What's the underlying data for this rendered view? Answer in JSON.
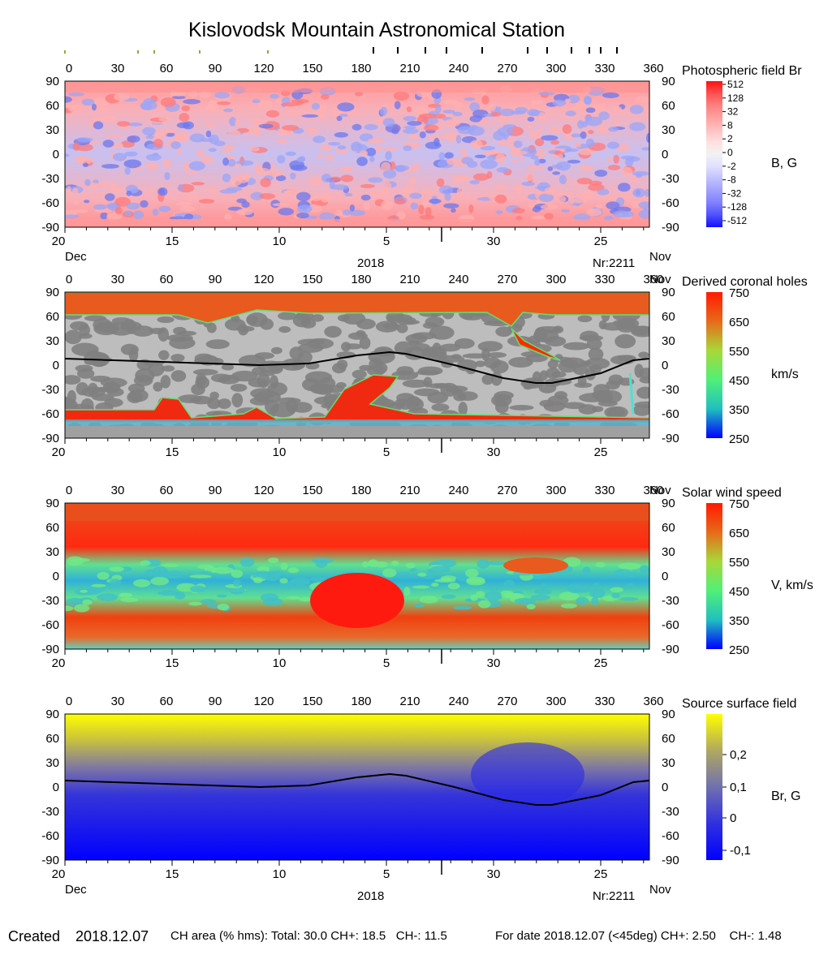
{
  "title": "Kislovodsk Mountain Astronomical Station",
  "top_markers": [
    0,
    45,
    55,
    83,
    125,
    190,
    205,
    222,
    235,
    257,
    285,
    297,
    312,
    323,
    330,
    340
  ],
  "lon_ticks": [
    "0",
    "30",
    "60",
    "90",
    "120",
    "150",
    "180",
    "210",
    "240",
    "270",
    "300",
    "330",
    "360"
  ],
  "lat_ticks": [
    "90",
    "60",
    "30",
    "0",
    "-30",
    "-60",
    "-90"
  ],
  "date_ticks": [
    {
      "label": "20",
      "lon": 0
    },
    {
      "label": "15",
      "lon": 66
    },
    {
      "label": "10",
      "lon": 132
    },
    {
      "label": "5",
      "lon": 198
    },
    {
      "label": "30",
      "lon": 264
    },
    {
      "label": "25",
      "lon": 330
    }
  ],
  "month_left": "Dec",
  "month_right": "Nov",
  "year": "2018",
  "rotation": "Nr:2211",
  "panels": [
    {
      "name": "photospheric",
      "title": "Photospheric field Br",
      "unit": "B, G",
      "colorbar": {
        "colors": [
          "#ff1010",
          "#ff5050",
          "#ff8080",
          "#ffa0a0",
          "#ffc0c0",
          "#ffe0e0",
          "#f2f2f2",
          "#e0e0ff",
          "#c0c0ff",
          "#a0a0ff",
          "#8080ff",
          "#5050ff",
          "#1010ff"
        ],
        "labels": [
          "512",
          "128",
          "32",
          "8",
          "2",
          "0",
          "-2",
          "-8",
          "-32",
          "-128",
          "-512"
        ]
      },
      "show_month_labels": true,
      "show_neutral_line": false
    },
    {
      "name": "coronal-holes",
      "title": "Derived coronal holes",
      "unit": "km/s",
      "colorbar": {
        "colors": [
          "#ff1a00",
          "#e86a1a",
          "#a8d838",
          "#50f078",
          "#20c0c0",
          "#0000ff"
        ],
        "labels": [
          "750",
          "650",
          "550",
          "450",
          "350",
          "250"
        ]
      },
      "show_month_labels": false,
      "show_neutral_line": true
    },
    {
      "name": "solar-wind",
      "title": "Solar wind speed",
      "unit": "V, km/s",
      "colorbar": {
        "colors": [
          "#ff1a00",
          "#e86a1a",
          "#a8d838",
          "#50f078",
          "#20c0c0",
          "#0000ff"
        ],
        "labels": [
          "750",
          "650",
          "550",
          "450",
          "350",
          "250"
        ]
      },
      "show_month_labels": false,
      "show_neutral_line": false
    },
    {
      "name": "source-surface",
      "title": "Source surface field",
      "unit": "Br, G",
      "colorbar": {
        "colors": [
          "#ffff00",
          "#b0a860",
          "#7070b0",
          "#3030e0",
          "#0000ff"
        ],
        "labels": [
          "0,2",
          "0,1",
          "0",
          "-0,1"
        ]
      },
      "show_month_labels": true,
      "show_neutral_line": true
    }
  ],
  "chart_data": {
    "type": "heatmap",
    "title": "Kislovodsk Mountain Astronomical Station",
    "x_range": [
      0,
      360
    ],
    "y_range": [
      -90,
      90
    ],
    "neutral_line": {
      "lon": [
        0,
        30,
        60,
        90,
        120,
        150,
        180,
        200,
        210,
        240,
        270,
        290,
        300,
        330,
        350,
        360
      ],
      "lat": [
        8,
        6,
        4,
        2,
        0,
        2,
        12,
        16,
        14,
        0,
        -16,
        -22,
        -22,
        -10,
        6,
        8
      ]
    },
    "coronal_hole_fields": {
      "north_polar_hole_boundary_lat": 60,
      "south_polar_hole_boundary_lat": -70,
      "extension": {
        "lon": [
          160,
          210
        ],
        "lat": [
          -10,
          -60
        ]
      },
      "speed_range_kms": [
        250,
        750
      ]
    },
    "source_surface_field_range_G": [
      -0.15,
      0.3
    ]
  },
  "footer": {
    "created_label": "Created",
    "created_date": "2018.12.07",
    "ch_area": "CH area (% hms): Total: 30.0 CH+: 18.5   CH-: 11.5",
    "for_date": "For date 2018.12.07 (<45deg) CH+: 2.50    CH-: 1.48"
  }
}
